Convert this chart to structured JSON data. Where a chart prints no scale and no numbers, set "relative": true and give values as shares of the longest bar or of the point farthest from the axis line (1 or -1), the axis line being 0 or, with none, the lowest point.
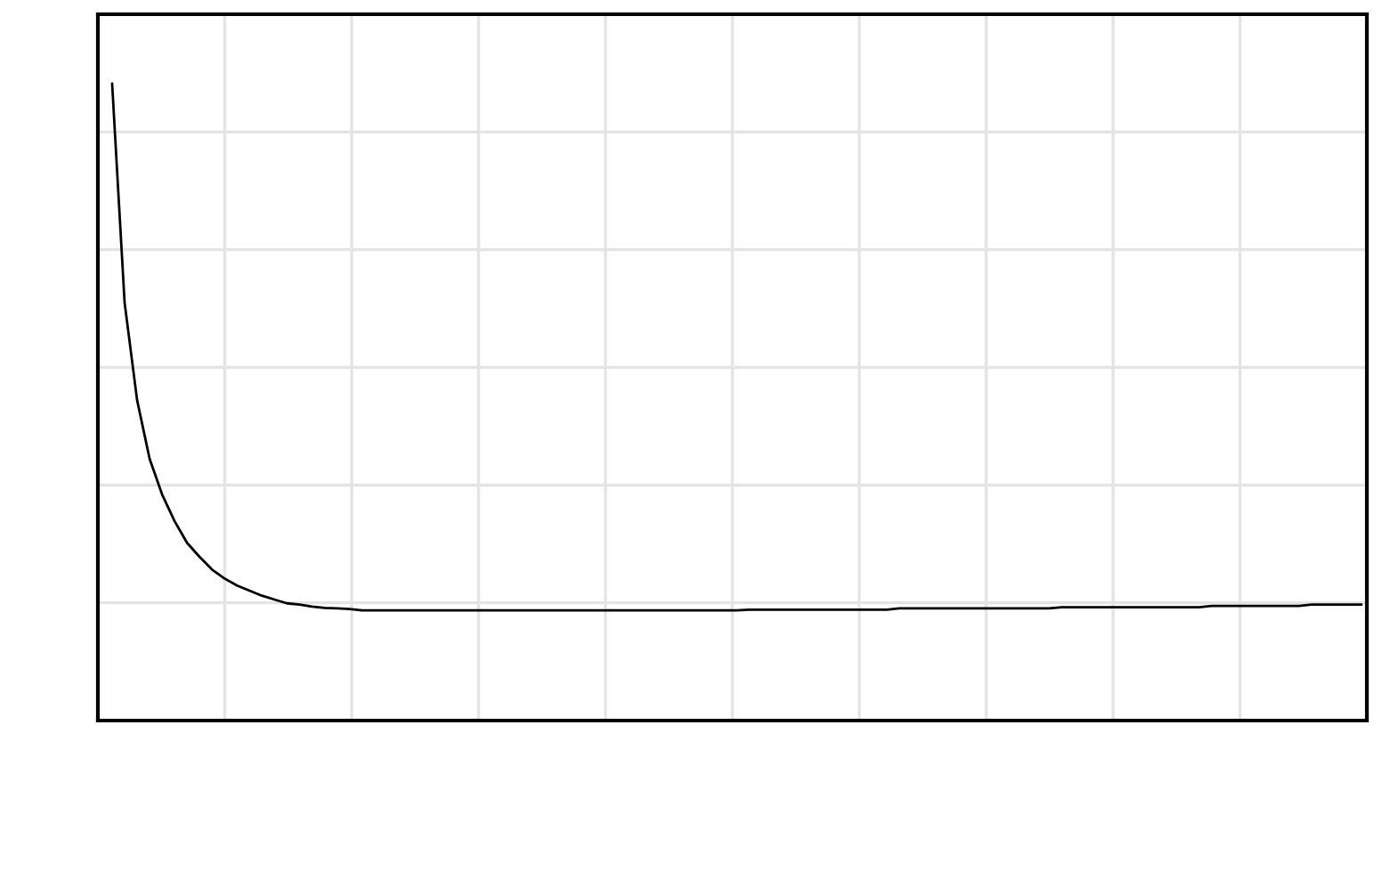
{
  "chart_data": {
    "type": "line",
    "relative": true,
    "grid": true,
    "color": "#000000",
    "categories": [
      null,
      null,
      null,
      null,
      null,
      null,
      null,
      null,
      null,
      null,
      null,
      null,
      null,
      null,
      null,
      null,
      null,
      null,
      null,
      null,
      null,
      null,
      null,
      null,
      null,
      null,
      null,
      null,
      null,
      null,
      null,
      null,
      null,
      null,
      null,
      null,
      null,
      null,
      null,
      null,
      null,
      null,
      null,
      null,
      null,
      null,
      null,
      null,
      null,
      null,
      null,
      null,
      null,
      null,
      null,
      null,
      null,
      null,
      null,
      null,
      null,
      null,
      null,
      null,
      null,
      null,
      null,
      null,
      null,
      null,
      null,
      null,
      null,
      null,
      null,
      null,
      null,
      null,
      null,
      null,
      null,
      null,
      null,
      null,
      null,
      null,
      null,
      null,
      null,
      null,
      null,
      null,
      null,
      null,
      null,
      null,
      null,
      null,
      null,
      null,
      null
    ],
    "values": [
      1.0,
      0.656,
      0.503,
      0.411,
      0.355,
      0.313,
      0.279,
      0.257,
      0.237,
      0.223,
      0.212,
      0.204,
      0.196,
      0.19,
      0.184,
      0.182,
      0.179,
      0.177,
      0.176,
      0.175,
      0.173,
      0.173,
      0.173,
      0.173,
      0.173,
      0.173,
      0.173,
      0.173,
      0.173,
      0.173,
      0.173,
      0.173,
      0.173,
      0.173,
      0.173,
      0.173,
      0.173,
      0.173,
      0.173,
      0.173,
      0.173,
      0.173,
      0.173,
      0.173,
      0.173,
      0.173,
      0.173,
      0.173,
      0.173,
      0.173,
      0.173,
      0.174,
      0.174,
      0.174,
      0.174,
      0.174,
      0.174,
      0.174,
      0.174,
      0.174,
      0.174,
      0.174,
      0.174,
      0.176,
      0.176,
      0.176,
      0.176,
      0.176,
      0.176,
      0.176,
      0.176,
      0.176,
      0.176,
      0.176,
      0.176,
      0.176,
      0.178,
      0.178,
      0.178,
      0.178,
      0.178,
      0.178,
      0.178,
      0.178,
      0.178,
      0.178,
      0.178,
      0.178,
      0.18,
      0.18,
      0.18,
      0.18,
      0.18,
      0.18,
      0.18,
      0.18,
      0.182,
      0.182,
      0.182,
      0.182,
      0.182
    ]
  }
}
